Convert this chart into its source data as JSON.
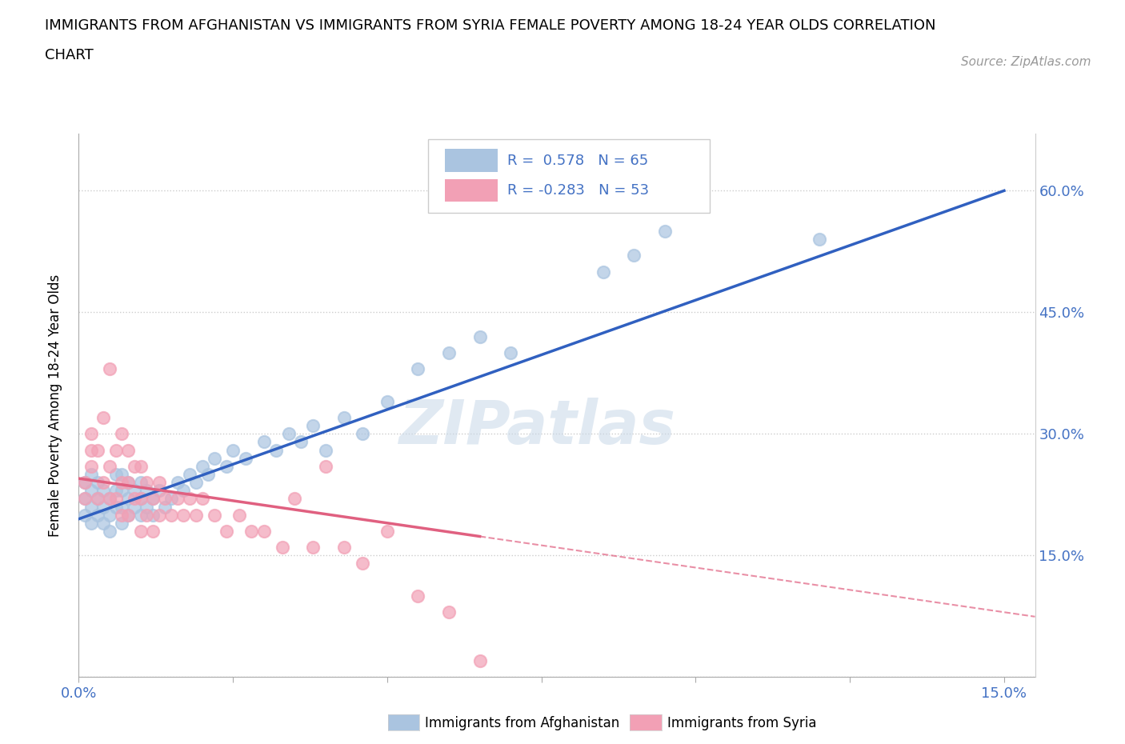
{
  "title_line1": "IMMIGRANTS FROM AFGHANISTAN VS IMMIGRANTS FROM SYRIA FEMALE POVERTY AMONG 18-24 YEAR OLDS CORRELATION",
  "title_line2": "CHART",
  "source": "Source: ZipAtlas.com",
  "ylabel_label": "Female Poverty Among 18-24 Year Olds",
  "xlim": [
    0.0,
    0.155
  ],
  "ylim": [
    0.0,
    0.67
  ],
  "x_ticks": [
    0.0,
    0.025,
    0.05,
    0.075,
    0.1,
    0.125,
    0.15
  ],
  "x_tick_labels_show": [
    "0.0%",
    "",
    "",
    "",
    "",
    "",
    "15.0%"
  ],
  "y_ticks": [
    0.0,
    0.15,
    0.3,
    0.45,
    0.6
  ],
  "y_tick_labels_show": [
    "",
    "15.0%",
    "30.0%",
    "45.0%",
    "60.0%"
  ],
  "afghanistan_color": "#aac4e0",
  "syria_color": "#f2a0b5",
  "afghanistan_line_color": "#3060c0",
  "syria_line_color": "#e06080",
  "R_afghanistan": 0.578,
  "N_afghanistan": 65,
  "R_syria": -0.283,
  "N_syria": 53,
  "watermark": "ZIPatlas",
  "afghanistan_x": [
    0.001,
    0.001,
    0.001,
    0.002,
    0.002,
    0.002,
    0.002,
    0.003,
    0.003,
    0.003,
    0.004,
    0.004,
    0.004,
    0.005,
    0.005,
    0.005,
    0.006,
    0.006,
    0.006,
    0.007,
    0.007,
    0.007,
    0.007,
    0.008,
    0.008,
    0.008,
    0.009,
    0.009,
    0.01,
    0.01,
    0.01,
    0.011,
    0.011,
    0.012,
    0.012,
    0.013,
    0.014,
    0.015,
    0.016,
    0.017,
    0.018,
    0.019,
    0.02,
    0.021,
    0.022,
    0.024,
    0.025,
    0.027,
    0.03,
    0.032,
    0.034,
    0.036,
    0.038,
    0.04,
    0.043,
    0.046,
    0.05,
    0.055,
    0.06,
    0.065,
    0.07,
    0.085,
    0.09,
    0.095,
    0.12
  ],
  "afghanistan_y": [
    0.2,
    0.22,
    0.24,
    0.19,
    0.21,
    0.23,
    0.25,
    0.2,
    0.22,
    0.24,
    0.19,
    0.21,
    0.23,
    0.2,
    0.22,
    0.18,
    0.21,
    0.23,
    0.25,
    0.19,
    0.21,
    0.23,
    0.25,
    0.2,
    0.22,
    0.24,
    0.21,
    0.23,
    0.2,
    0.22,
    0.24,
    0.21,
    0.23,
    0.2,
    0.22,
    0.23,
    0.21,
    0.22,
    0.24,
    0.23,
    0.25,
    0.24,
    0.26,
    0.25,
    0.27,
    0.26,
    0.28,
    0.27,
    0.29,
    0.28,
    0.3,
    0.29,
    0.31,
    0.28,
    0.32,
    0.3,
    0.34,
    0.38,
    0.4,
    0.42,
    0.4,
    0.5,
    0.52,
    0.55,
    0.54
  ],
  "syria_x": [
    0.001,
    0.001,
    0.002,
    0.002,
    0.002,
    0.003,
    0.003,
    0.004,
    0.004,
    0.005,
    0.005,
    0.005,
    0.006,
    0.006,
    0.007,
    0.007,
    0.007,
    0.008,
    0.008,
    0.008,
    0.009,
    0.009,
    0.01,
    0.01,
    0.01,
    0.011,
    0.011,
    0.012,
    0.012,
    0.013,
    0.013,
    0.014,
    0.015,
    0.016,
    0.017,
    0.018,
    0.019,
    0.02,
    0.022,
    0.024,
    0.026,
    0.028,
    0.03,
    0.033,
    0.035,
    0.038,
    0.04,
    0.043,
    0.046,
    0.05,
    0.055,
    0.06,
    0.065
  ],
  "syria_y": [
    0.22,
    0.24,
    0.26,
    0.28,
    0.3,
    0.22,
    0.28,
    0.24,
    0.32,
    0.22,
    0.26,
    0.38,
    0.22,
    0.28,
    0.2,
    0.24,
    0.3,
    0.2,
    0.24,
    0.28,
    0.22,
    0.26,
    0.18,
    0.22,
    0.26,
    0.2,
    0.24,
    0.18,
    0.22,
    0.2,
    0.24,
    0.22,
    0.2,
    0.22,
    0.2,
    0.22,
    0.2,
    0.22,
    0.2,
    0.18,
    0.2,
    0.18,
    0.18,
    0.16,
    0.22,
    0.16,
    0.26,
    0.16,
    0.14,
    0.18,
    0.1,
    0.08,
    0.02
  ]
}
